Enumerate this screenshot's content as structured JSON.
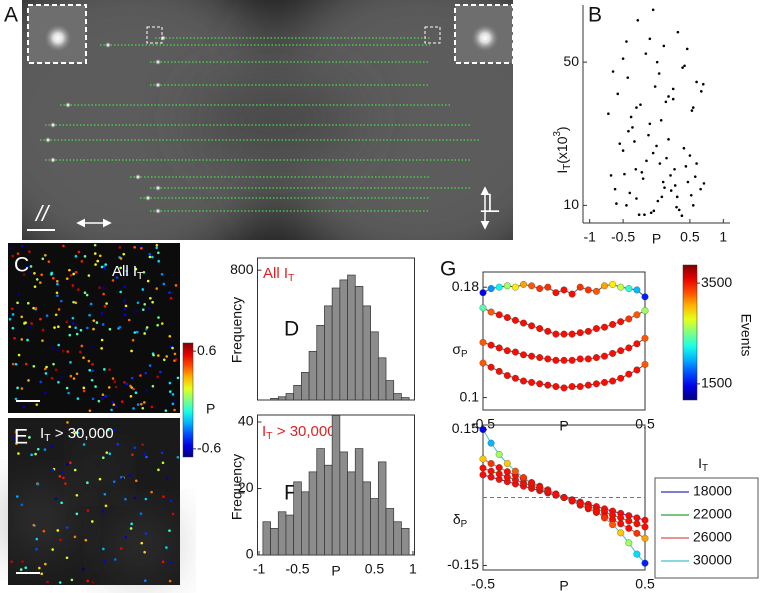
{
  "panel_labels": {
    "a": "A",
    "b": "B",
    "c": "C",
    "d": "D",
    "e": "E",
    "f": "F",
    "g": "G"
  },
  "image_a": {
    "parallel": "//",
    "perpendicular": "⊥"
  },
  "image_c": {
    "label": [
      "All I",
      "T"
    ]
  },
  "image_e": {
    "label": [
      "I",
      "T",
      " > 30,000"
    ]
  },
  "colorbar_p": {
    "label": "P",
    "clim": [
      -0.7,
      0.7
    ],
    "ticks": [
      0.6,
      -0.6
    ]
  },
  "colorbar_events": {
    "label": "Events",
    "clim": [
      1180,
      3860
    ],
    "ticks": [
      3500,
      1500
    ]
  },
  "chart_data": [
    {
      "type": "scatter",
      "ylabel": [
        "I",
        "T",
        "(x10",
        "3",
        ")"
      ],
      "xlabel": "P",
      "color": "#000000",
      "xlim": [
        -1.1,
        1.1
      ],
      "xticks": [
        -1,
        -0.5,
        0.5,
        1
      ],
      "ylim": [
        8.2,
        95
      ],
      "yticks": [
        10,
        50
      ],
      "ylog": true,
      "x": [
        -0.62,
        -0.45,
        -0.31,
        -0.18,
        -0.05,
        0.08,
        0.21,
        0.34,
        0.47,
        0.6,
        -0.55,
        -0.4,
        -0.26,
        -0.12,
        0.02,
        0.15,
        0.28,
        0.41,
        0.55,
        -0.68,
        -0.36,
        -0.2,
        -0.08,
        0.05,
        0.18,
        0.31,
        0.44,
        0.66,
        -0.5,
        -0.3,
        -0.1,
        0.1,
        0.3,
        0.5,
        -0.22,
        0.0,
        0.22,
        -0.42,
        0.38,
        -0.15,
        0.12,
        -0.6,
        0.58,
        -0.33,
        0.27,
        -0.04,
        0.07,
        -0.48,
        0.52,
        0.71,
        -0.72,
        -0.58,
        -0.43,
        -0.3,
        -0.16,
        -0.02,
        0.11,
        0.25,
        0.39,
        0.53,
        0.67,
        -0.5,
        -0.24,
        0.04,
        0.32,
        0.6,
        -0.38,
        -0.1,
        0.18,
        0.46,
        -0.65,
        0.7,
        -0.28,
        0.14,
        0.42,
        -0.05,
        0.25,
        0.01,
        -0.45,
        0.55
      ],
      "values": [
        12,
        10,
        15,
        9,
        18,
        11,
        14,
        9.5,
        13,
        16,
        20,
        11.5,
        9,
        22,
        10.5,
        17,
        12.5,
        19,
        10,
        14,
        24,
        13.5,
        9.2,
        16,
        21,
        11,
        15.5,
        12,
        18.5,
        10.8,
        25,
        13,
        9.8,
        17.5,
        14.5,
        19.5,
        11.8,
        23,
        8.9,
        16.5,
        12.2,
        10.2,
        13.8,
        20.5,
        15,
        9.4,
        26,
        14.2,
        11.2,
        12.8,
        28,
        35,
        42,
        30,
        55,
        38,
        60,
        33,
        47,
        29,
        36,
        52,
        31,
        44,
        70,
        40,
        27,
        65,
        34,
        58,
        45,
        39,
        80,
        32,
        48,
        90,
        37,
        50,
        63,
        30
      ]
    },
    {
      "type": "histogram",
      "ylabel": "Frequency",
      "annotation": [
        "All I",
        "T"
      ],
      "annotation_color": "#e02020",
      "color": "#8c8c8c",
      "xlim": [
        -1.02,
        1.02
      ],
      "ylim": [
        0,
        875
      ],
      "yticks": [
        800
      ],
      "bins": [
        -0.85,
        -0.75,
        -0.65,
        -0.55,
        -0.45,
        -0.35,
        -0.25,
        -0.15,
        -0.05,
        0.05,
        0.15,
        0.25,
        0.35,
        0.45,
        0.55,
        0.65,
        0.75,
        0.85,
        0.95
      ],
      "values": [
        10,
        20,
        40,
        90,
        170,
        300,
        460,
        580,
        690,
        740,
        770,
        700,
        580,
        420,
        260,
        120,
        40,
        15
      ]
    },
    {
      "type": "histogram",
      "ylabel": "Frequency",
      "xlabel": "P",
      "annotation": [
        "I",
        "T",
        " > 30,000"
      ],
      "annotation_color": "#e02020",
      "color": "#8c8c8c",
      "xlim": [
        -1.02,
        1.02
      ],
      "xticks": [
        -1,
        -0.5,
        0.5,
        1
      ],
      "ylim": [
        0,
        42.1
      ],
      "yticks": [
        0,
        20,
        40
      ],
      "bins": [
        -0.95,
        -0.85,
        -0.75,
        -0.65,
        -0.55,
        -0.45,
        -0.35,
        -0.25,
        -0.15,
        -0.05,
        0.05,
        0.15,
        0.25,
        0.35,
        0.45,
        0.55,
        0.65,
        0.75,
        0.85,
        0.95
      ],
      "values": [
        10,
        8,
        13,
        12,
        22,
        19,
        25,
        32,
        27,
        42,
        31,
        25,
        32,
        22,
        17,
        28,
        14,
        10,
        8
      ]
    },
    {
      "type": "line",
      "ylabel": [
        "σ",
        "P"
      ],
      "xlabel": "P",
      "xlim": [
        -0.5,
        0.5
      ],
      "xticks": [
        -0.5,
        0.5
      ],
      "ylim": [
        0.091,
        0.191
      ],
      "yticks": [
        0.1,
        0.18
      ],
      "x": [
        -0.5,
        -0.45,
        -0.4,
        -0.35,
        -0.3,
        -0.25,
        -0.2,
        -0.15,
        -0.1,
        -0.05,
        0,
        0.05,
        0.1,
        0.15,
        0.2,
        0.25,
        0.3,
        0.35,
        0.4,
        0.45,
        0.5
      ],
      "series": [
        {
          "color": "#555555",
          "values": [
            0.176,
            0.179,
            0.18,
            0.181,
            0.18,
            0.182,
            0.181,
            0.179,
            0.18,
            0.176,
            0.178,
            0.175,
            0.18,
            0.178,
            0.177,
            0.181,
            0.182,
            0.18,
            0.179,
            0.178,
            0.173
          ],
          "events": [
            1500,
            1900,
            2200,
            2600,
            2900,
            3100,
            3300,
            3400,
            3400,
            3500,
            3500,
            3500,
            3400,
            3400,
            3300,
            3100,
            2900,
            2700,
            2300,
            2000,
            1600
          ]
        },
        {
          "color": "#555555",
          "values": [
            0.165,
            0.162,
            0.16,
            0.158,
            0.156,
            0.154,
            0.152,
            0.15,
            0.148,
            0.146,
            0.146,
            0.146,
            0.147,
            0.148,
            0.15,
            0.151,
            0.153,
            0.155,
            0.157,
            0.16,
            0.163
          ],
          "events": [
            2400,
            3300,
            3500,
            3500,
            3500,
            3500,
            3500,
            3500,
            3500,
            3500,
            3500,
            3500,
            3500,
            3500,
            3500,
            3500,
            3500,
            3500,
            3400,
            3300,
            2600
          ]
        },
        {
          "color": "#555555",
          "values": [
            0.14,
            0.138,
            0.136,
            0.134,
            0.133,
            0.131,
            0.13,
            0.129,
            0.128,
            0.127,
            0.127,
            0.127,
            0.128,
            0.128,
            0.129,
            0.13,
            0.132,
            0.134,
            0.136,
            0.139,
            0.143
          ],
          "events": [
            3300,
            3500,
            3500,
            3500,
            3500,
            3500,
            3500,
            3500,
            3500,
            3500,
            3500,
            3500,
            3500,
            3500,
            3500,
            3500,
            3500,
            3500,
            3500,
            3500,
            3300
          ]
        },
        {
          "color": "#555555",
          "values": [
            0.125,
            0.122,
            0.119,
            0.116,
            0.114,
            0.112,
            0.111,
            0.11,
            0.109,
            0.108,
            0.107,
            0.108,
            0.108,
            0.109,
            0.11,
            0.111,
            0.112,
            0.114,
            0.117,
            0.12,
            0.124
          ],
          "events": [
            3300,
            3500,
            3500,
            3500,
            3500,
            3500,
            3500,
            3500,
            3500,
            3500,
            3500,
            3500,
            3500,
            3500,
            3500,
            3500,
            3500,
            3500,
            3500,
            3500,
            3300
          ]
        }
      ]
    },
    {
      "type": "line",
      "ylabel": [
        "δ",
        "P"
      ],
      "xlabel": "P",
      "legend_title": [
        "I",
        "T"
      ],
      "hline": 0,
      "xlim": [
        -0.5,
        0.5
      ],
      "xticks": [
        -0.5,
        0.5
      ],
      "ylim": [
        -0.16,
        0.16
      ],
      "yticks": [
        0.15,
        -0.15
      ],
      "x": [
        -0.5,
        -0.45,
        -0.4,
        -0.35,
        -0.3,
        -0.25,
        -0.2,
        -0.15,
        -0.1,
        -0.05,
        0,
        0.05,
        0.1,
        0.15,
        0.2,
        0.25,
        0.3,
        0.35,
        0.4,
        0.45,
        0.5
      ],
      "series": [
        {
          "name": "18000",
          "color": "#3030c0",
          "values": [
            0.05,
            0.045,
            0.04,
            0.035,
            0.03,
            0.025,
            0.02,
            0.015,
            0.01,
            0.005,
            0,
            -0.005,
            -0.01,
            -0.015,
            -0.02,
            -0.025,
            -0.03,
            -0.035,
            -0.04,
            -0.045,
            -0.05
          ],
          "events": [
            3500,
            3500,
            3500,
            3500,
            3500,
            3500,
            3500,
            3500,
            3500,
            3500,
            3500,
            3500,
            3500,
            3500,
            3500,
            3500,
            3500,
            3500,
            3500,
            3500,
            3500
          ]
        },
        {
          "name": "22000",
          "color": "#2ca02c",
          "values": [
            0.065,
            0.058,
            0.052,
            0.045,
            0.039,
            0.032,
            0.026,
            0.019,
            0.013,
            0.006,
            0,
            -0.006,
            -0.013,
            -0.019,
            -0.026,
            -0.032,
            -0.039,
            -0.045,
            -0.052,
            -0.058,
            -0.065
          ],
          "events": [
            3500,
            3500,
            3500,
            3500,
            3500,
            3500,
            3500,
            3500,
            3500,
            3500,
            3500,
            3500,
            3500,
            3500,
            3500,
            3500,
            3500,
            3500,
            3500,
            3500,
            3500
          ]
        },
        {
          "name": "26000",
          "color": "#e05050",
          "values": [
            0.085,
            0.075,
            0.066,
            0.057,
            0.049,
            0.041,
            0.033,
            0.025,
            0.017,
            0.008,
            0,
            -0.008,
            -0.017,
            -0.025,
            -0.033,
            -0.041,
            -0.049,
            -0.058,
            -0.068,
            -0.079,
            -0.09
          ],
          "events": [
            3000,
            3400,
            3500,
            3500,
            3500,
            3500,
            3500,
            3500,
            3500,
            3500,
            3500,
            3500,
            3500,
            3500,
            3500,
            3500,
            3500,
            3500,
            3500,
            3400,
            3100
          ]
        },
        {
          "name": "30000",
          "color": "#40c0d0",
          "values": [
            0.15,
            0.12,
            0.095,
            0.075,
            0.058,
            0.044,
            0.032,
            0.022,
            0.013,
            0.006,
            0,
            -0.006,
            -0.013,
            -0.022,
            -0.032,
            -0.045,
            -0.06,
            -0.078,
            -0.1,
            -0.125,
            -0.145
          ],
          "events": [
            1500,
            2000,
            2600,
            3000,
            3300,
            3400,
            3500,
            3500,
            3500,
            3500,
            3500,
            3500,
            3500,
            3500,
            3500,
            3400,
            3300,
            3000,
            2600,
            2100,
            1600
          ]
        }
      ]
    }
  ]
}
